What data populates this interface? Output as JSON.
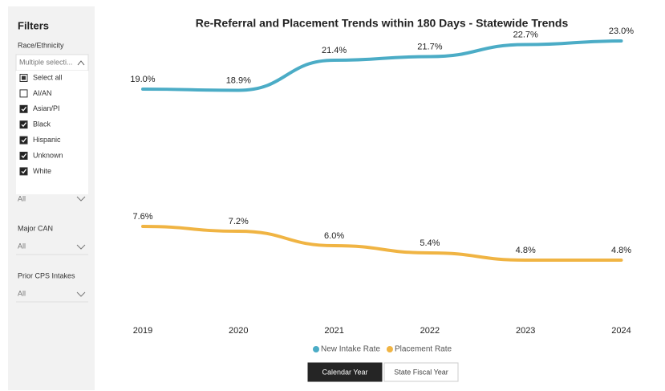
{
  "filters": {
    "title": "Filters",
    "race": {
      "label": "Race/Ethnicity",
      "selection": "Multiple selecti...",
      "items": [
        {
          "label": "Select all",
          "state": "partial"
        },
        {
          "label": "AI/AN",
          "state": "unchecked"
        },
        {
          "label": "Asian/PI",
          "state": "checked"
        },
        {
          "label": "Black",
          "state": "checked"
        },
        {
          "label": "Hispanic",
          "state": "checked"
        },
        {
          "label": "Unknown",
          "state": "checked"
        },
        {
          "label": "White",
          "state": "checked"
        }
      ],
      "hidden_value": "All"
    },
    "major_can": {
      "label": "Major CAN",
      "value": "All"
    },
    "prior_cps": {
      "label": "Prior CPS Intakes",
      "value": "All"
    }
  },
  "chart_data": {
    "type": "line",
    "title": "Re-Referral and Placement Trends within 180 Days - Statewide Trends",
    "categories": [
      "2019",
      "2020",
      "2021",
      "2022",
      "2023",
      "2024"
    ],
    "ylim": [
      0,
      25
    ],
    "series": [
      {
        "name": "New Intake Rate",
        "color": "#4bacc6",
        "values": [
          19.0,
          18.9,
          21.4,
          21.7,
          22.7,
          23.0
        ],
        "value_labels": [
          "19.0%",
          "18.9%",
          "21.4%",
          "21.7%",
          "22.7%",
          "23.0%"
        ]
      },
      {
        "name": "Placement Rate",
        "color": "#f0b443",
        "values": [
          7.6,
          7.2,
          6.0,
          5.4,
          4.8,
          4.8
        ],
        "value_labels": [
          "7.6%",
          "7.2%",
          "6.0%",
          "5.4%",
          "4.8%",
          "4.8%"
        ]
      }
    ]
  },
  "controls": {
    "buttons": [
      {
        "label": "Calendar Year",
        "active": true
      },
      {
        "label": "State Fiscal Year",
        "active": false
      }
    ]
  }
}
